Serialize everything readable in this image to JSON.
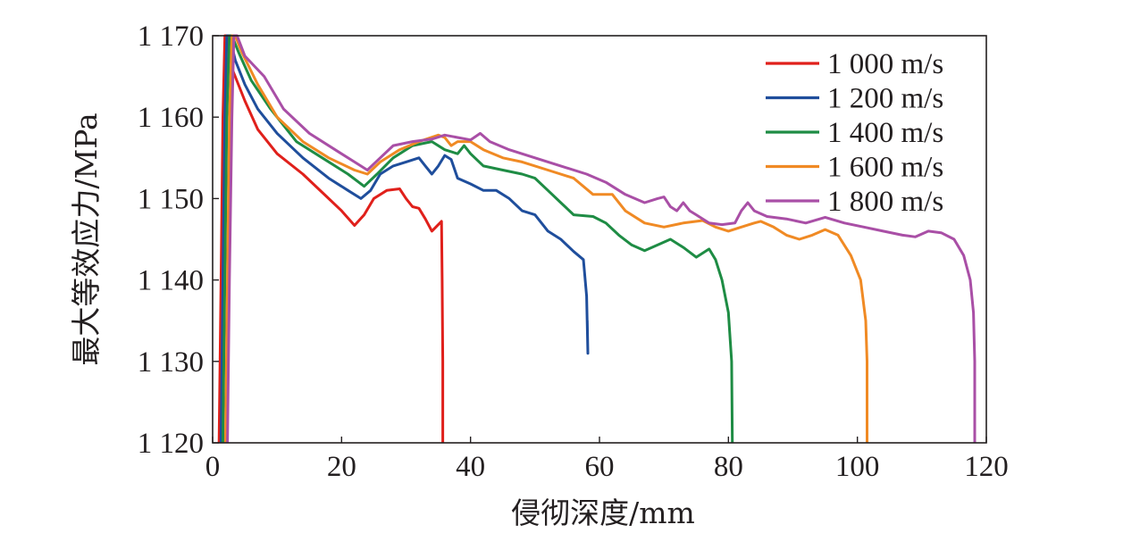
{
  "chart_data": {
    "type": "line",
    "xlabel": "侵彻深度/mm",
    "ylabel": "最大等效应力/MPa",
    "xlim": [
      0,
      120
    ],
    "ylim": [
      1120,
      1170
    ],
    "xticks": [
      0,
      20,
      40,
      60,
      80,
      100,
      120
    ],
    "yticks": [
      1120,
      1130,
      1140,
      1150,
      1160,
      1170
    ],
    "xtick_labels": [
      "0",
      "20",
      "40",
      "60",
      "80",
      "100",
      "120"
    ],
    "ytick_labels": [
      "1 120",
      "1 130",
      "1 140",
      "1 150",
      "1 160",
      "1 170"
    ],
    "grid": false,
    "legend_position": "top-right",
    "series": [
      {
        "name": "1 000 m/s",
        "color": "#e0201b",
        "points": [
          [
            1.0,
            1120
          ],
          [
            1.3,
            1140
          ],
          [
            1.6,
            1160
          ],
          [
            1.9,
            1170
          ],
          [
            2.2,
            1170
          ],
          [
            3,
            1166
          ],
          [
            5,
            1162
          ],
          [
            7,
            1158.5
          ],
          [
            10,
            1155.5
          ],
          [
            14,
            1153
          ],
          [
            18,
            1150
          ],
          [
            20,
            1148.5
          ],
          [
            22,
            1146.7
          ],
          [
            23.5,
            1148
          ],
          [
            25,
            1150
          ],
          [
            27,
            1151
          ],
          [
            29,
            1151.2
          ],
          [
            30,
            1150
          ],
          [
            31,
            1149
          ],
          [
            32,
            1148.8
          ],
          [
            33,
            1147.5
          ],
          [
            34,
            1146
          ],
          [
            35,
            1146.8
          ],
          [
            35.5,
            1147.2
          ],
          [
            35.6,
            1140
          ],
          [
            35.7,
            1130
          ],
          [
            35.7,
            1120
          ]
        ]
      },
      {
        "name": "1 200 m/s",
        "color": "#1f4e9c",
        "points": [
          [
            1.3,
            1120
          ],
          [
            1.6,
            1140
          ],
          [
            1.9,
            1160
          ],
          [
            2.2,
            1170
          ],
          [
            2.6,
            1170
          ],
          [
            3.5,
            1167
          ],
          [
            5,
            1164
          ],
          [
            7,
            1161
          ],
          [
            10,
            1158
          ],
          [
            14,
            1155
          ],
          [
            18,
            1152.5
          ],
          [
            21,
            1151
          ],
          [
            23,
            1150
          ],
          [
            24.5,
            1151
          ],
          [
            26,
            1153
          ],
          [
            28,
            1154
          ],
          [
            30,
            1154.5
          ],
          [
            32,
            1155
          ],
          [
            33,
            1154
          ],
          [
            34,
            1153
          ],
          [
            35,
            1154
          ],
          [
            36,
            1155.3
          ],
          [
            37,
            1154.8
          ],
          [
            38,
            1152.5
          ],
          [
            40,
            1151.8
          ],
          [
            42,
            1151
          ],
          [
            44,
            1151
          ],
          [
            46,
            1150
          ],
          [
            48,
            1148.5
          ],
          [
            50,
            1148
          ],
          [
            52,
            1146
          ],
          [
            54,
            1145
          ],
          [
            56,
            1143.5
          ],
          [
            57.5,
            1142.5
          ],
          [
            58,
            1138
          ],
          [
            58.2,
            1131
          ],
          [
            58.1,
            1135
          ]
        ]
      },
      {
        "name": "1 400 m/s",
        "color": "#1e8c44",
        "points": [
          [
            1.6,
            1120
          ],
          [
            1.9,
            1140
          ],
          [
            2.2,
            1160
          ],
          [
            2.6,
            1170
          ],
          [
            3,
            1170
          ],
          [
            4,
            1168
          ],
          [
            6,
            1164.5
          ],
          [
            9,
            1161
          ],
          [
            13,
            1157
          ],
          [
            17,
            1155
          ],
          [
            21,
            1153
          ],
          [
            23.5,
            1151.5
          ],
          [
            25.5,
            1153
          ],
          [
            28,
            1155
          ],
          [
            31,
            1156.5
          ],
          [
            34,
            1157
          ],
          [
            36,
            1156
          ],
          [
            38,
            1155.5
          ],
          [
            39,
            1156.5
          ],
          [
            40,
            1155.5
          ],
          [
            42,
            1154
          ],
          [
            45,
            1153.5
          ],
          [
            48,
            1153
          ],
          [
            50,
            1152.5
          ],
          [
            52,
            1151
          ],
          [
            54,
            1149.5
          ],
          [
            56,
            1148
          ],
          [
            59,
            1147.8
          ],
          [
            61,
            1147
          ],
          [
            63,
            1145.5
          ],
          [
            65,
            1144.3
          ],
          [
            67,
            1143.6
          ],
          [
            69,
            1144.3
          ],
          [
            71,
            1145
          ],
          [
            73,
            1144
          ],
          [
            75,
            1142.8
          ],
          [
            77,
            1143.8
          ],
          [
            78,
            1142.5
          ],
          [
            79,
            1140
          ],
          [
            80,
            1136
          ],
          [
            80.5,
            1130
          ],
          [
            80.6,
            1120
          ]
        ]
      },
      {
        "name": "1 600 m/s",
        "color": "#f08a24",
        "points": [
          [
            2.0,
            1120
          ],
          [
            2.3,
            1140
          ],
          [
            2.6,
            1160
          ],
          [
            3.0,
            1170
          ],
          [
            3.5,
            1170
          ],
          [
            4.5,
            1168
          ],
          [
            7,
            1164
          ],
          [
            10,
            1160
          ],
          [
            14,
            1157
          ],
          [
            18,
            1155
          ],
          [
            22,
            1153.5
          ],
          [
            24,
            1153
          ],
          [
            26,
            1154.5
          ],
          [
            29,
            1156
          ],
          [
            32,
            1157
          ],
          [
            35,
            1157.8
          ],
          [
            36,
            1157.5
          ],
          [
            37,
            1156.5
          ],
          [
            38,
            1157
          ],
          [
            40,
            1157
          ],
          [
            42,
            1156
          ],
          [
            45,
            1155
          ],
          [
            48,
            1154.5
          ],
          [
            52,
            1153.5
          ],
          [
            56,
            1152.5
          ],
          [
            59,
            1150.5
          ],
          [
            62,
            1150.5
          ],
          [
            64,
            1148.5
          ],
          [
            67,
            1147
          ],
          [
            70,
            1146.5
          ],
          [
            73,
            1147
          ],
          [
            76,
            1147.3
          ],
          [
            78,
            1146.5
          ],
          [
            80,
            1146
          ],
          [
            82,
            1146.5
          ],
          [
            84,
            1147
          ],
          [
            85,
            1147.2
          ],
          [
            87,
            1146.5
          ],
          [
            89,
            1145.5
          ],
          [
            91,
            1145
          ],
          [
            93,
            1145.5
          ],
          [
            95,
            1146.2
          ],
          [
            97,
            1145.5
          ],
          [
            99,
            1143
          ],
          [
            100.5,
            1140
          ],
          [
            101.3,
            1135
          ],
          [
            101.5,
            1130
          ],
          [
            101.5,
            1120
          ]
        ]
      },
      {
        "name": "1 800 m/s",
        "color": "#a94fa6",
        "points": [
          [
            2.3,
            1120
          ],
          [
            2.6,
            1140
          ],
          [
            3.0,
            1160
          ],
          [
            3.3,
            1170
          ],
          [
            3.8,
            1170
          ],
          [
            5,
            1167.5
          ],
          [
            8,
            1165
          ],
          [
            11,
            1161
          ],
          [
            15,
            1158
          ],
          [
            19,
            1156
          ],
          [
            22,
            1154.5
          ],
          [
            24,
            1153.5
          ],
          [
            26,
            1155
          ],
          [
            28,
            1156.5
          ],
          [
            31,
            1157
          ],
          [
            34,
            1157.3
          ],
          [
            36,
            1157.8
          ],
          [
            38,
            1157.5
          ],
          [
            40,
            1157.2
          ],
          [
            41.5,
            1158
          ],
          [
            43,
            1157
          ],
          [
            46,
            1156
          ],
          [
            50,
            1155
          ],
          [
            54,
            1154
          ],
          [
            58,
            1153
          ],
          [
            61,
            1152
          ],
          [
            64,
            1150.5
          ],
          [
            67,
            1149.5
          ],
          [
            69,
            1150
          ],
          [
            70,
            1150.2
          ],
          [
            71,
            1149
          ],
          [
            72,
            1148.5
          ],
          [
            73,
            1149.5
          ],
          [
            74,
            1148.5
          ],
          [
            75,
            1148
          ],
          [
            77,
            1147
          ],
          [
            79,
            1146.8
          ],
          [
            81,
            1147
          ],
          [
            82,
            1148.5
          ],
          [
            83,
            1149.5
          ],
          [
            84,
            1148.5
          ],
          [
            86,
            1147.8
          ],
          [
            89,
            1147.5
          ],
          [
            92,
            1147
          ],
          [
            95,
            1147.7
          ],
          [
            98,
            1147
          ],
          [
            101,
            1146.5
          ],
          [
            104,
            1146
          ],
          [
            107,
            1145.5
          ],
          [
            109,
            1145.3
          ],
          [
            111,
            1146
          ],
          [
            113,
            1145.8
          ],
          [
            115,
            1145
          ],
          [
            116.5,
            1143
          ],
          [
            117.5,
            1140
          ],
          [
            118,
            1136
          ],
          [
            118.2,
            1130
          ],
          [
            118.2,
            1120
          ]
        ]
      }
    ]
  }
}
